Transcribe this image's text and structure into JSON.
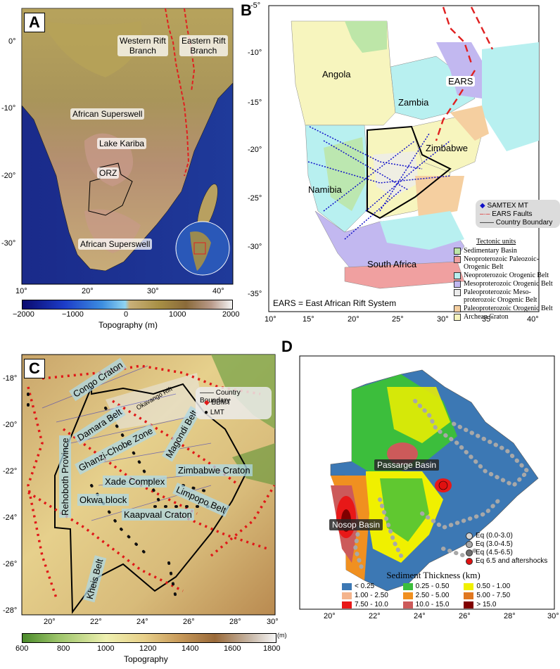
{
  "panels": {
    "A": {
      "letter": "A",
      "labels": {
        "western_rift": [
          "Western Rift",
          "Branch"
        ],
        "eastern_rift": [
          "Eastern Rift",
          "Branch"
        ],
        "superswell_north": "African Superswell",
        "lake_kariba": "Lake Kariba",
        "orz": "ORZ",
        "superswell_south": "African Superswell"
      },
      "x_ticks": [
        "10°",
        "20°",
        "30°",
        "40°"
      ],
      "y_ticks": [
        "0°",
        "-10°",
        "-20°",
        "-30°"
      ],
      "colorbar": {
        "ticks": [
          "−2000",
          "−1000",
          "0",
          "1000",
          "2000"
        ],
        "label": "Topography (m)",
        "colors": [
          "#0a0a6e",
          "#1c3cc8",
          "#3d8ee0",
          "#8fd4f2",
          "#c9b07a",
          "#a89045",
          "#8a6a3a",
          "#b99a8a",
          "#f4f4f4"
        ]
      }
    },
    "B": {
      "letter": "B",
      "countries": {
        "angola": "Angola",
        "zambia": "Zambia",
        "zimbabwe": "Zimbabwe",
        "namibia": "Namibia",
        "south_africa": "South Africa",
        "ears": "EARS"
      },
      "legend1": {
        "samtex": "SAMTEX MT",
        "ears_faults": "EARS Faults",
        "country_boundary": "Country Boundary"
      },
      "tectonic": {
        "title": "Tectonic units",
        "items": [
          {
            "label": "Sedimentary Basin",
            "color": "#bde6a8"
          },
          {
            "label": "Neoproterozoic Paleozoic-",
            "label2": "Orogenic Belt",
            "color": "#f0a0a0"
          },
          {
            "label": "Neoproterozoic Orogenic Belt",
            "color": "#b8f0f0"
          },
          {
            "label": "Mesoproterozoic Orogenic Belt",
            "color": "#c2b8f0"
          },
          {
            "label": "Paleoproterozoic Meso-",
            "label2": "proterozoic Orogenic Belt",
            "color": "#ececec"
          },
          {
            "label": "Paleoproterozoic Orogenic Belt",
            "color": "#f5cfa0"
          },
          {
            "label": "Archean Craton",
            "color": "#f7f5be"
          }
        ]
      },
      "note": "EARS = East African Rift System",
      "x_ticks": [
        "10°",
        "15°",
        "20°",
        "25°",
        "30°",
        "35°",
        "40°"
      ],
      "y_ticks": [
        "-5°",
        "-10°",
        "-15°",
        "-20°",
        "-25°",
        "-30°",
        "-35°"
      ]
    },
    "C": {
      "letter": "C",
      "units": {
        "congo": "Congo Craton",
        "damara": "Damara Belt",
        "okavango": "Okavango Rift",
        "ghanzi": "Ghanzi-Chobe Zone",
        "magondi": "Magondi Belt",
        "zimbabwe": "Zimbabwe Craton",
        "xade": "Xade Complex",
        "limpopo": "Limpopo Belt",
        "okwa": "Okwa block",
        "kaapvaal": "Kaapvaal Craton",
        "rehoboth": "Rehoboth Province",
        "kheis": "Kheis Belt"
      },
      "legend": {
        "country_boundary": "Country Boundary",
        "bbmt": "BBMT",
        "lmt": "LMT"
      },
      "x_ticks": [
        "20°",
        "22°",
        "24°",
        "26°",
        "28°",
        "30°"
      ],
      "y_ticks": [
        "-18°",
        "-20°",
        "-22°",
        "-24°",
        "-26°",
        "-28°"
      ],
      "colorbar": {
        "ticks": [
          "600",
          "800",
          "1000",
          "1200",
          "1400",
          "1600",
          "1800"
        ],
        "unit": "(m)",
        "label": "Topography",
        "colors": [
          "#4a8a2a",
          "#9cc46a",
          "#eef0b0",
          "#e8d08a",
          "#c89a5a",
          "#9a6a3a",
          "#c8b8a8",
          "#f6f6f6"
        ]
      }
    },
    "D": {
      "letter": "D",
      "basins": {
        "passarge": "Passarge Basin",
        "nosop": "Nosop Basin"
      },
      "eq_legend": [
        {
          "label": "Eq (0.0-3.0)",
          "color": "#d4d4d4"
        },
        {
          "label": "Eq (3.0-4.5)",
          "color": "#a8a8a8"
        },
        {
          "label": "Eq (4.5-6.5)",
          "color": "#6e6e6e"
        },
        {
          "label": "Eq 6.5 and aftershocks",
          "color": "#e01010"
        }
      ],
      "sediment": {
        "title": "Sediment Thickness (km)",
        "items": [
          {
            "label": "< 0.25",
            "color": "#3c78b4"
          },
          {
            "label": "0.25 - 0.50",
            "color": "#3cbe3c"
          },
          {
            "label": "0.50 - 1.00",
            "color": "#f0f000"
          },
          {
            "label": "1.00 - 2.50",
            "color": "#f4b48c"
          },
          {
            "label": "2.50 - 5.00",
            "color": "#f09020"
          },
          {
            "label": "5.00 - 7.50",
            "color": "#e07820"
          },
          {
            "label": "7.50 - 10.0",
            "color": "#e81818"
          },
          {
            "label": "10.0 - 15.0",
            "color": "#cc5a5a"
          },
          {
            "label": "> 15.0",
            "color": "#800000"
          }
        ]
      },
      "x_ticks": [
        "20°",
        "22°",
        "24°",
        "26°",
        "28°",
        "30°"
      ]
    }
  }
}
